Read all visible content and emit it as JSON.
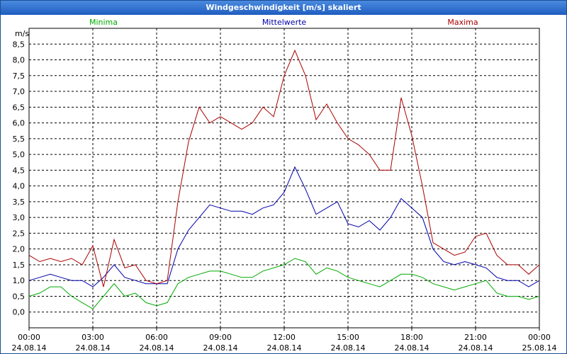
{
  "window": {
    "title": "Windgeschwindigkeit [m/s] skaliert"
  },
  "chart_data": {
    "type": "line",
    "title": "Windgeschwindigkeit [m/s] skaliert",
    "ylabel": "m/s",
    "ylim": [
      -0.5,
      9.0
    ],
    "yticks": [
      "0,0",
      "0,5",
      "1,0",
      "1,5",
      "2,0",
      "2,5",
      "3,0",
      "3,5",
      "4,0",
      "4,5",
      "5,0",
      "5,5",
      "6,0",
      "6,5",
      "7,0",
      "7,5",
      "8,0",
      "8,5"
    ],
    "xticks": [
      {
        "time": "00:00",
        "date": "24.08.14"
      },
      {
        "time": "03:00",
        "date": "24.08.14"
      },
      {
        "time": "06:00",
        "date": "24.08.14"
      },
      {
        "time": "09:00",
        "date": "24.08.14"
      },
      {
        "time": "12:00",
        "date": "24.08.14"
      },
      {
        "time": "15:00",
        "date": "24.08.14"
      },
      {
        "time": "18:00",
        "date": "24.08.14"
      },
      {
        "time": "21:00",
        "date": "24.08.14"
      },
      {
        "time": "00:00",
        "date": "25.08.14"
      }
    ],
    "x_hours": [
      0,
      0.5,
      1,
      1.5,
      2,
      2.5,
      3,
      3.5,
      4,
      4.5,
      5,
      5.5,
      6,
      6.5,
      7,
      7.5,
      8,
      8.5,
      9,
      9.5,
      10,
      10.5,
      11,
      11.5,
      12,
      12.5,
      13,
      13.5,
      14,
      14.5,
      15,
      15.5,
      16,
      16.5,
      17,
      17.5,
      18,
      18.5,
      19,
      19.5,
      20,
      20.5,
      21,
      21.5,
      22,
      22.5,
      23,
      23.5,
      24
    ],
    "grid": true,
    "legend": "top",
    "series": [
      {
        "name": "Minima",
        "color": "#00aa00",
        "values": [
          0.5,
          0.6,
          0.8,
          0.8,
          0.5,
          0.3,
          0.1,
          0.5,
          0.9,
          0.5,
          0.6,
          0.3,
          0.2,
          0.3,
          0.9,
          1.1,
          1.2,
          1.3,
          1.3,
          1.2,
          1.1,
          1.1,
          1.3,
          1.4,
          1.5,
          1.7,
          1.6,
          1.2,
          1.4,
          1.3,
          1.1,
          1.0,
          0.9,
          0.8,
          1.0,
          1.2,
          1.2,
          1.1,
          0.9,
          0.8,
          0.7,
          0.8,
          0.9,
          1.0,
          0.6,
          0.5,
          0.5,
          0.4,
          0.5
        ]
      },
      {
        "name": "Mittelwerte",
        "color": "#0000aa",
        "values": [
          1.0,
          1.1,
          1.2,
          1.1,
          1.0,
          1.0,
          0.8,
          1.1,
          1.5,
          1.1,
          1.0,
          0.9,
          0.9,
          0.9,
          2.0,
          2.6,
          3.0,
          3.4,
          3.3,
          3.2,
          3.2,
          3.1,
          3.3,
          3.4,
          3.8,
          4.6,
          3.9,
          3.1,
          3.3,
          3.5,
          2.8,
          2.7,
          2.9,
          2.6,
          3.0,
          3.6,
          3.3,
          3.0,
          2.0,
          1.6,
          1.5,
          1.6,
          1.5,
          1.4,
          1.1,
          1.0,
          1.0,
          0.8,
          1.0
        ]
      },
      {
        "name": "Maxima",
        "color": "#aa0000",
        "values": [
          1.8,
          1.6,
          1.7,
          1.6,
          1.7,
          1.5,
          2.1,
          0.8,
          2.3,
          1.4,
          1.5,
          1.0,
          0.9,
          1.0,
          3.5,
          5.4,
          6.5,
          6.0,
          6.2,
          6.0,
          5.8,
          6.0,
          6.5,
          6.2,
          7.5,
          8.3,
          7.5,
          6.1,
          6.6,
          6.0,
          5.5,
          5.3,
          5.0,
          4.5,
          4.5,
          6.8,
          5.6,
          4.0,
          2.2,
          2.0,
          1.8,
          1.9,
          2.4,
          2.5,
          1.8,
          1.5,
          1.5,
          1.2,
          1.5
        ]
      }
    ]
  }
}
